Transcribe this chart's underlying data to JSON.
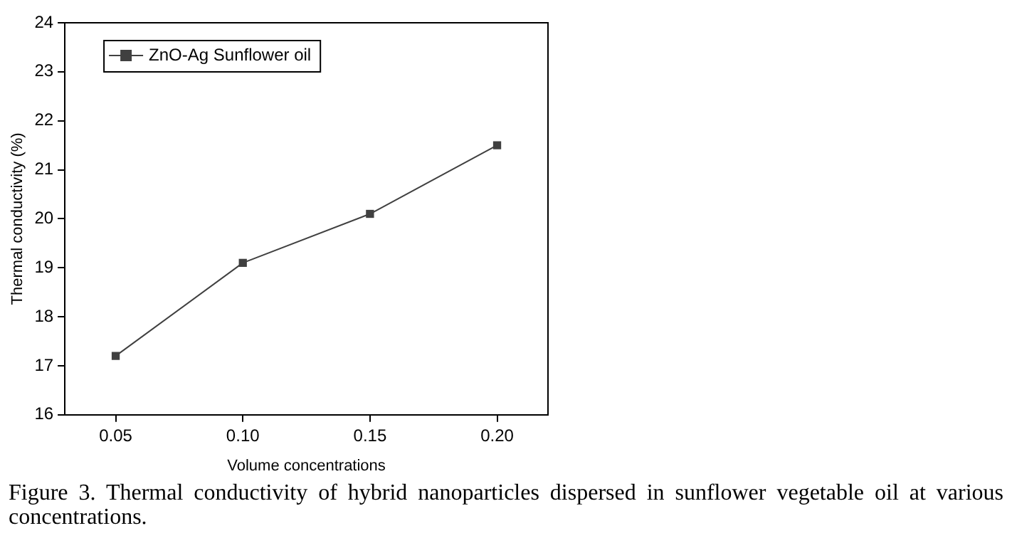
{
  "chart_data": {
    "type": "line",
    "xlabel": "Volume concentrations",
    "ylabel": "Thermal conductivity (%)",
    "x": [
      0.05,
      0.1,
      0.15,
      0.2
    ],
    "series": [
      {
        "name": "ZnO-Ag Sunflower oil",
        "color": "#404040",
        "values": [
          17.2,
          19.1,
          20.1,
          21.5
        ]
      }
    ],
    "xlim": [
      0.03,
      0.22
    ],
    "xticks": [
      {
        "value": 0.05,
        "label": "0.05"
      },
      {
        "value": 0.1,
        "label": "0.10"
      },
      {
        "value": 0.15,
        "label": "0.15"
      },
      {
        "value": 0.2,
        "label": "0.20"
      }
    ],
    "ylim": [
      16,
      24
    ],
    "yticks": [
      16,
      17,
      18,
      19,
      20,
      21,
      22,
      23,
      24
    ],
    "grid": false,
    "legend": "top left",
    "marker": "square",
    "line_style": "solid",
    "annotations": [
      "Figure 3. Thermal conductivity of hybrid nanoparticles dispersed in sunflower vegetable oil at various concentrations."
    ]
  }
}
